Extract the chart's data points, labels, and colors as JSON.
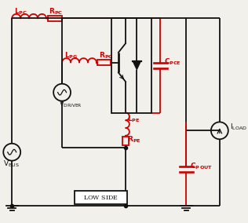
{
  "bg": "#f2f0eb",
  "red": "#cc0000",
  "blk": "#111111",
  "figsize": [
    3.16,
    2.84
  ],
  "dpi": 100,
  "lw": 1.3,
  "xlim": [
    0,
    10
  ],
  "ylim": [
    0,
    9
  ]
}
